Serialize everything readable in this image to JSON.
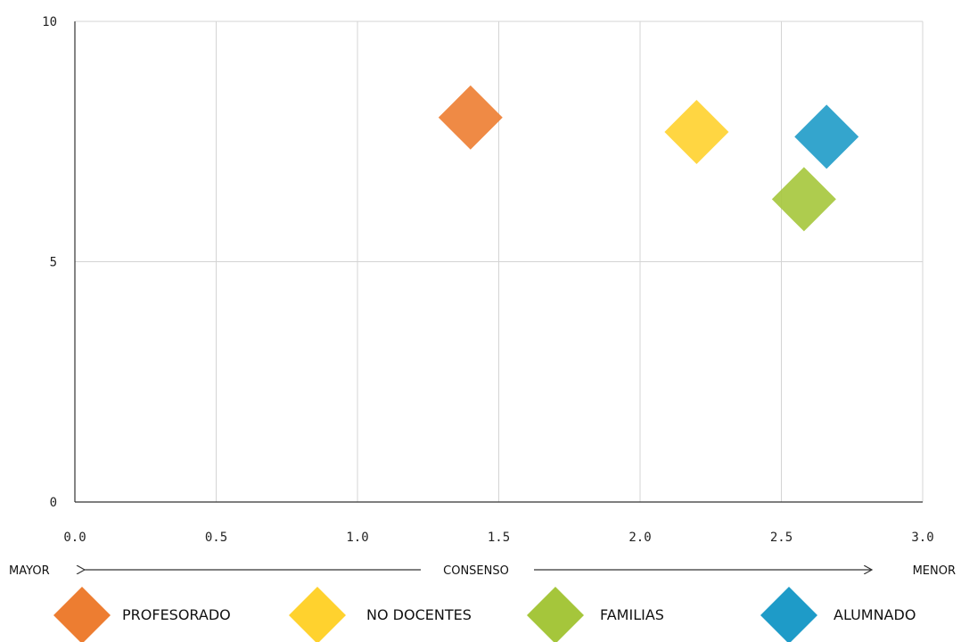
{
  "chart_data": {
    "type": "scatter",
    "xlim": [
      0,
      3
    ],
    "ylim": [
      0,
      10
    ],
    "x_ticks": [
      "0.0",
      "0.5",
      "1.0",
      "1.5",
      "2.0",
      "2.5",
      "3.0"
    ],
    "y_ticks": [
      "0",
      "5",
      "10"
    ],
    "grid": true,
    "axis_note": {
      "left": "MAYOR",
      "center": "CONSENSO",
      "right": "MENOR"
    },
    "legend_placement": "bottom",
    "series": [
      {
        "name": "PROFESORADO",
        "color": "#ED7D31",
        "x": 1.4,
        "y": 8.0
      },
      {
        "name": "NO DOCENTES",
        "color": "#FFD22E",
        "x": 2.2,
        "y": 7.7
      },
      {
        "name": "FAMILIAS",
        "color": "#A5C63B",
        "x": 2.58,
        "y": 6.3
      },
      {
        "name": "ALUMNADO",
        "color": "#1E9BC8",
        "x": 2.66,
        "y": 7.6
      }
    ]
  }
}
